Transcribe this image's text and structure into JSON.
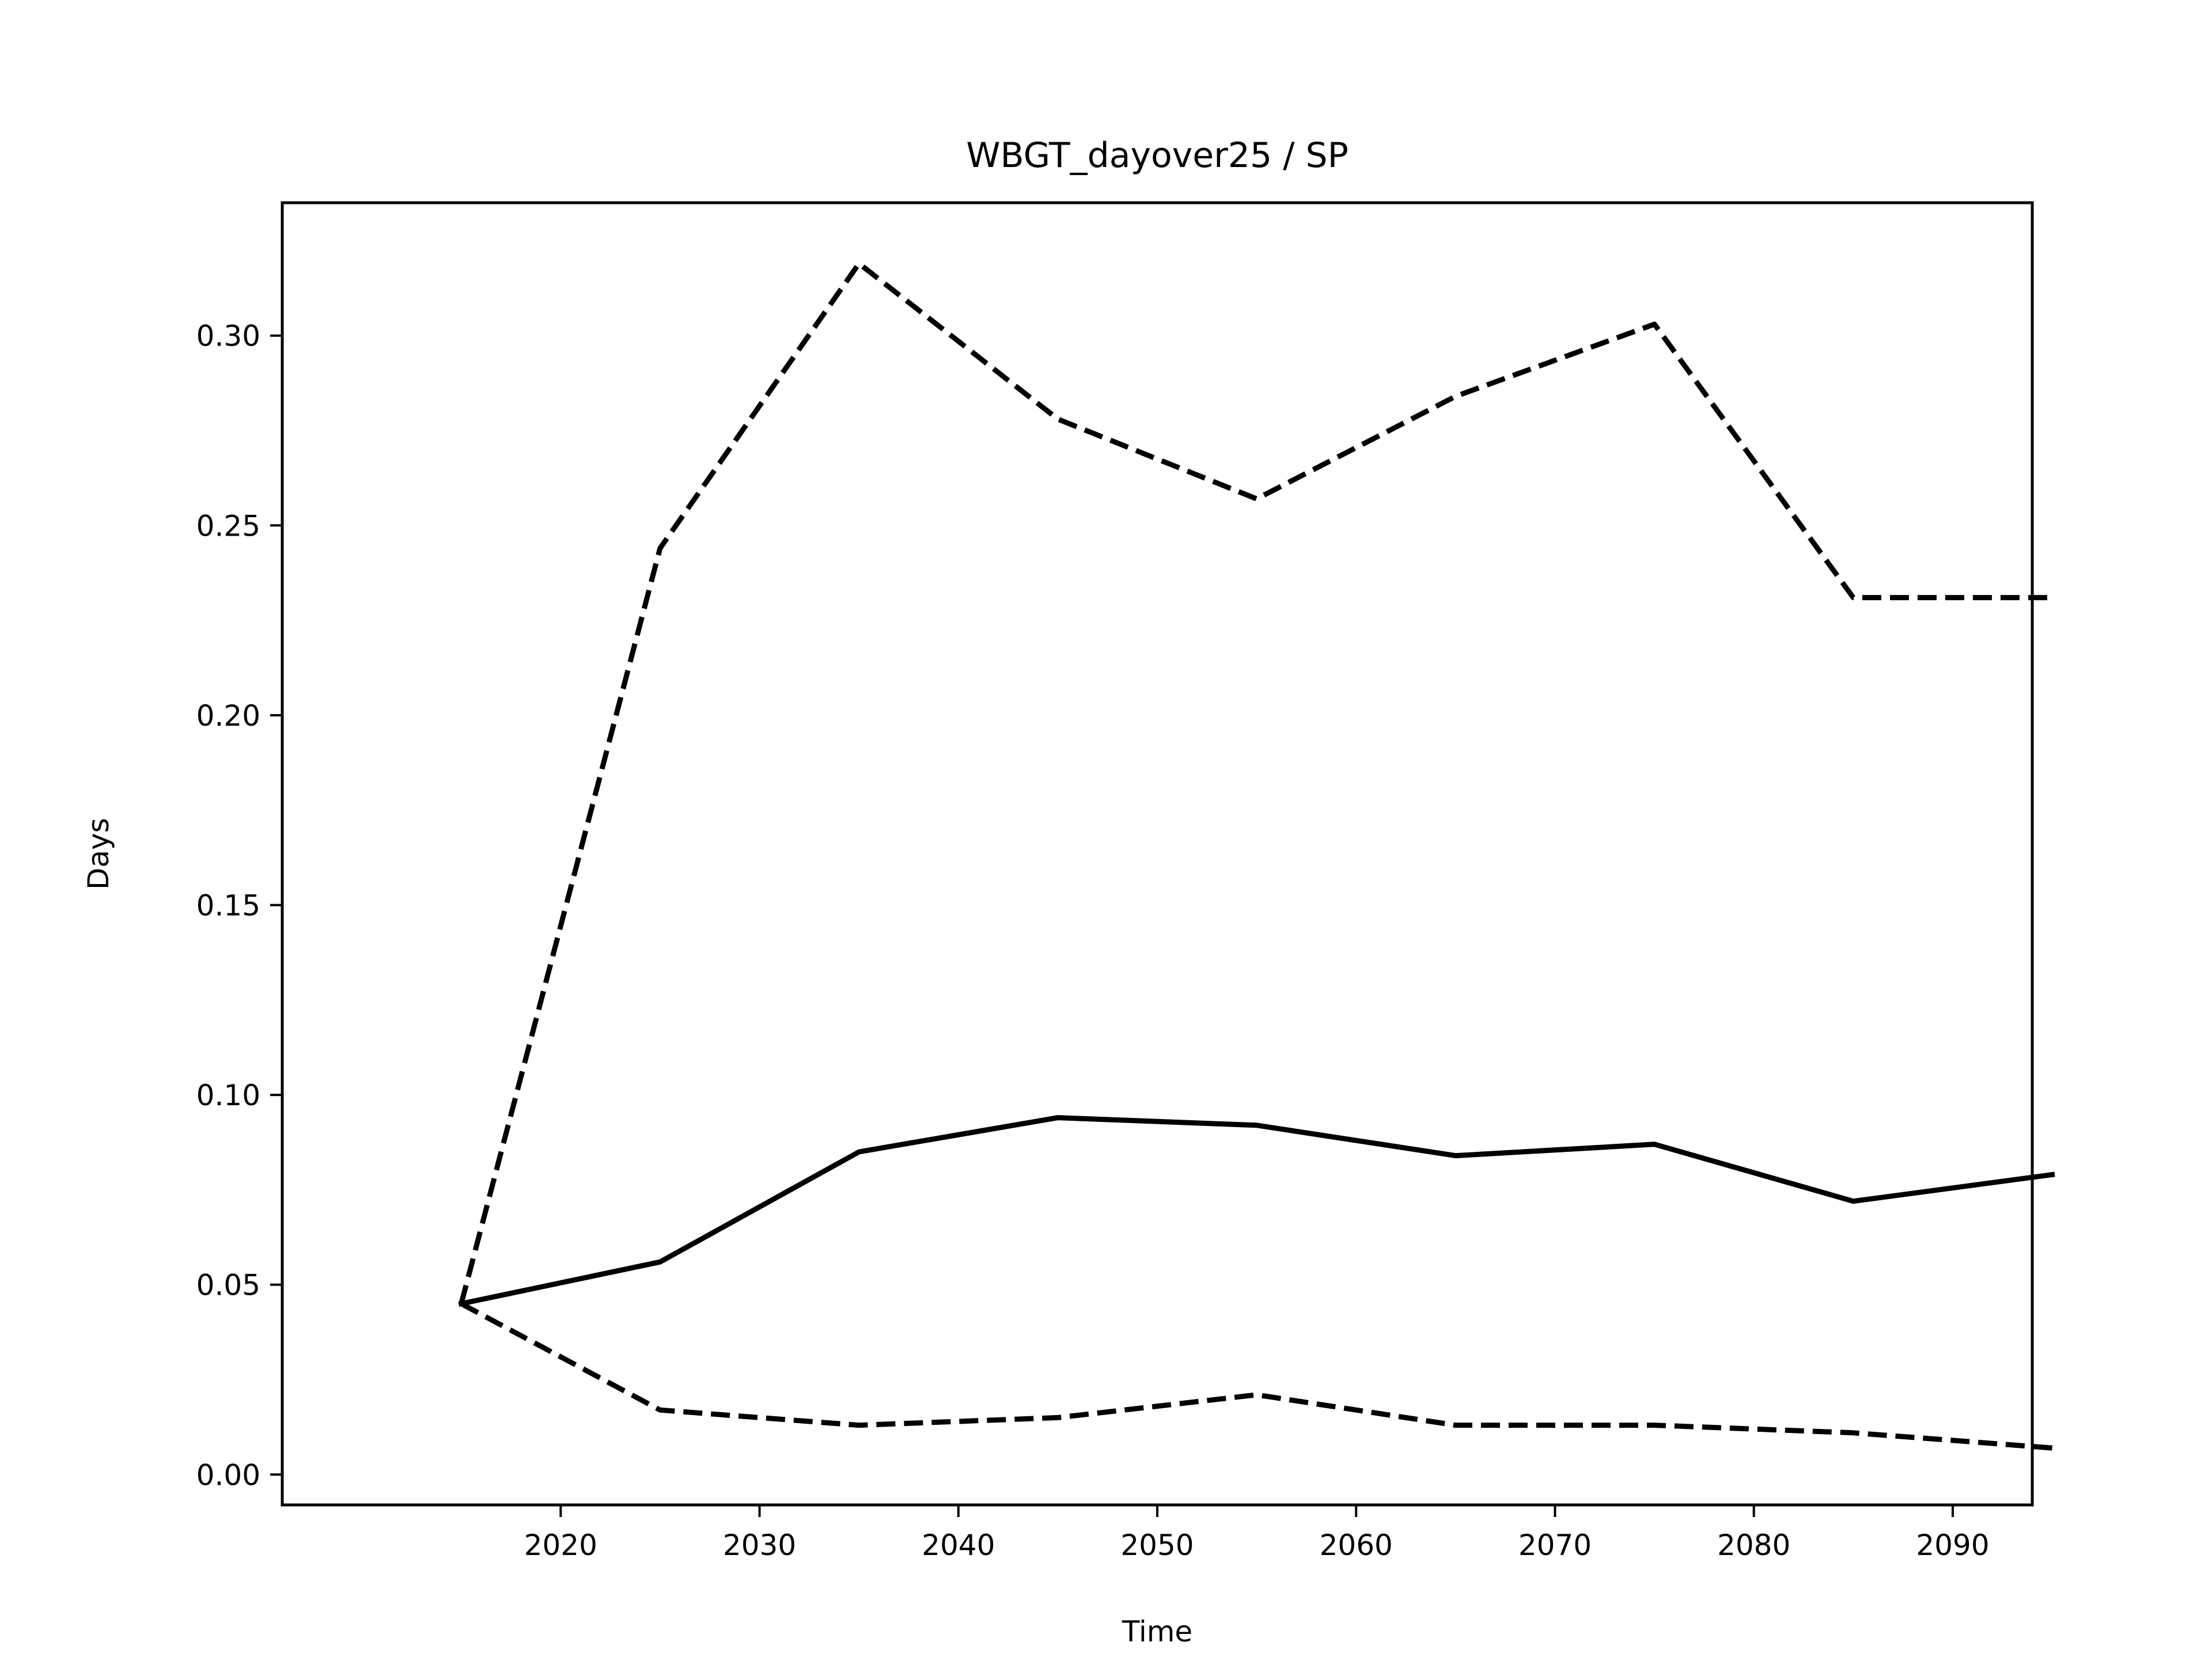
{
  "chart_data": {
    "type": "line",
    "title": "WBGT_dayover25 / SP",
    "xlabel": "Time",
    "ylabel": "Days",
    "x": [
      2015,
      2025,
      2035,
      2045,
      2055,
      2065,
      2075,
      2085,
      2095
    ],
    "xlim": [
      2006,
      2094
    ],
    "ylim": [
      -0.008,
      0.335
    ],
    "xticks": [
      2020,
      2030,
      2040,
      2050,
      2060,
      2070,
      2080,
      2090
    ],
    "yticks": [
      0.0,
      0.05,
      0.1,
      0.15,
      0.2,
      0.25,
      0.3
    ],
    "xtick_labels": [
      "2020",
      "2030",
      "2040",
      "2050",
      "2060",
      "2070",
      "2080",
      "2090"
    ],
    "ytick_labels": [
      "0.00",
      "0.05",
      "0.10",
      "0.15",
      "0.20",
      "0.25",
      "0.30"
    ],
    "grid": false,
    "series": [
      {
        "style": "solid",
        "color": "#000000",
        "values": [
          0.045,
          0.056,
          0.085,
          0.094,
          0.092,
          0.084,
          0.087,
          0.072,
          0.079
        ]
      },
      {
        "style": "dashed",
        "color": "#000000",
        "values": [
          0.045,
          0.244,
          0.319,
          0.278,
          0.257,
          0.284,
          0.303,
          0.231,
          0.231
        ]
      },
      {
        "style": "dashed",
        "color": "#000000",
        "values": [
          0.045,
          0.017,
          0.013,
          0.015,
          0.021,
          0.013,
          0.013,
          0.011,
          0.007
        ]
      }
    ]
  }
}
